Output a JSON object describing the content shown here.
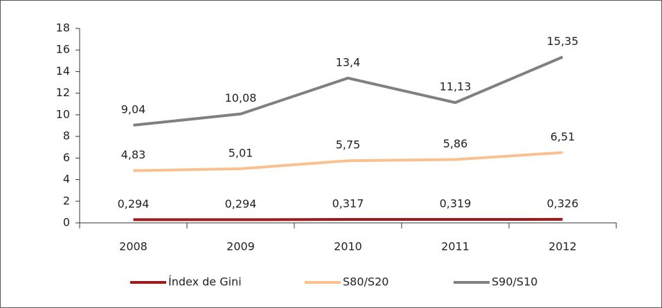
{
  "chart_data": {
    "type": "line",
    "categories": [
      "2008",
      "2009",
      "2010",
      "2011",
      "2012"
    ],
    "series": [
      {
        "name": "Índex de Gini",
        "color": "#9e1b1b",
        "values": [
          0.294,
          0.294,
          0.317,
          0.319,
          0.326
        ],
        "value_labels": [
          "0,294",
          "0,294",
          "0,317",
          "0,319",
          "0,326"
        ]
      },
      {
        "name": "S80/S20",
        "color": "#fac090",
        "values": [
          4.83,
          5.01,
          5.75,
          5.86,
          6.51
        ],
        "value_labels": [
          "4,83",
          "5,01",
          "5,75",
          "5,86",
          "6,51"
        ]
      },
      {
        "name": "S90/S10",
        "color": "#808080",
        "values": [
          9.04,
          10.08,
          13.4,
          11.13,
          15.35
        ],
        "value_labels": [
          "9,04",
          "10,08",
          "13,4",
          "11,13",
          "15,35"
        ]
      }
    ],
    "ylim": [
      0,
      18
    ],
    "yticks": [
      0,
      2,
      4,
      6,
      8,
      10,
      12,
      14,
      16,
      18
    ],
    "legend": "bottom"
  }
}
